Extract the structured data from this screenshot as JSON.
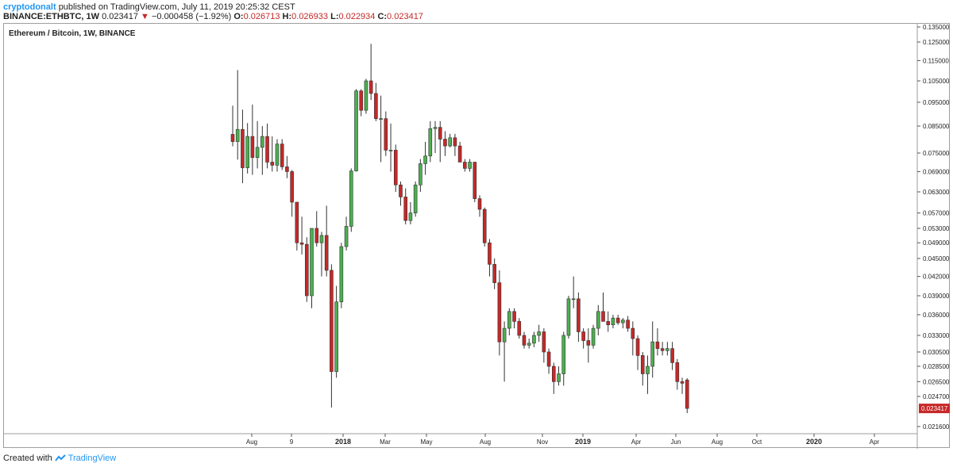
{
  "header": {
    "author": "cryptodonalt",
    "published": "published on TradingView.com, July 11, 2019 20:25:32 CEST",
    "symbol": "BINANCE:ETHBTC, 1W",
    "last": "0.023417",
    "change": "−0.000458 (−1.92%)",
    "o_label": "O:",
    "o_value": "0.026713",
    "h_label": "H:",
    "h_value": "0.026933",
    "l_label": "L:",
    "l_value": "0.022934",
    "c_label": "C:",
    "c_value": "0.023417"
  },
  "footer": {
    "created_with": "Created with",
    "brand": "TradingView"
  },
  "colors": {
    "up": "#4caf50",
    "down": "#c62828",
    "last_price_bg": "#c62828",
    "brand": "#2196f3"
  },
  "chart_data": {
    "type": "candlestick",
    "title": "Ethereum / Bitcoin, 1W, BINANCE",
    "y_ticks": [
      "0.135000",
      "0.125000",
      "0.115000",
      "0.105000",
      "0.095000",
      "0.085000",
      "0.075000",
      "0.069000",
      "0.063000",
      "0.057000",
      "0.053000",
      "0.049000",
      "0.045000",
      "0.042000",
      "0.039000",
      "0.036000",
      "0.033000",
      "0.030500",
      "0.028500",
      "0.026500",
      "0.024700",
      "0.021600"
    ],
    "x_ticks": [
      "Aug",
      "9",
      "2018",
      "Mar",
      "May",
      "Aug",
      "Nov",
      "2019",
      "Apr",
      "Jun",
      "Aug",
      "Oct",
      "2020",
      "Apr"
    ],
    "last_price_label": "0.023417",
    "candles": [
      {
        "o": 0.0818,
        "h": 0.0935,
        "l": 0.0774,
        "c": 0.0791
      },
      {
        "o": 0.0791,
        "h": 0.1102,
        "l": 0.0728,
        "c": 0.0837
      },
      {
        "o": 0.0837,
        "h": 0.0918,
        "l": 0.0655,
        "c": 0.0702
      },
      {
        "o": 0.0702,
        "h": 0.0862,
        "l": 0.0684,
        "c": 0.081
      },
      {
        "o": 0.081,
        "h": 0.094,
        "l": 0.068,
        "c": 0.0735
      },
      {
        "o": 0.0735,
        "h": 0.087,
        "l": 0.07,
        "c": 0.077
      },
      {
        "o": 0.077,
        "h": 0.085,
        "l": 0.068,
        "c": 0.081
      },
      {
        "o": 0.081,
        "h": 0.086,
        "l": 0.07,
        "c": 0.072
      },
      {
        "o": 0.072,
        "h": 0.081,
        "l": 0.069,
        "c": 0.071
      },
      {
        "o": 0.071,
        "h": 0.08,
        "l": 0.069,
        "c": 0.0782
      },
      {
        "o": 0.0782,
        "h": 0.08,
        "l": 0.0695,
        "c": 0.0705
      },
      {
        "o": 0.0705,
        "h": 0.074,
        "l": 0.067,
        "c": 0.069
      },
      {
        "o": 0.069,
        "h": 0.0695,
        "l": 0.056,
        "c": 0.06
      },
      {
        "o": 0.06,
        "h": 0.06,
        "l": 0.047,
        "c": 0.049
      },
      {
        "o": 0.049,
        "h": 0.056,
        "l": 0.046,
        "c": 0.0486
      },
      {
        "o": 0.0486,
        "h": 0.0505,
        "l": 0.038,
        "c": 0.039
      },
      {
        "o": 0.039,
        "h": 0.053,
        "l": 0.037,
        "c": 0.053
      },
      {
        "o": 0.053,
        "h": 0.0575,
        "l": 0.048,
        "c": 0.049
      },
      {
        "o": 0.049,
        "h": 0.052,
        "l": 0.042,
        "c": 0.051
      },
      {
        "o": 0.051,
        "h": 0.059,
        "l": 0.042,
        "c": 0.043
      },
      {
        "o": 0.043,
        "h": 0.044,
        "l": 0.0235,
        "c": 0.0278
      },
      {
        "o": 0.0278,
        "h": 0.0405,
        "l": 0.027,
        "c": 0.038
      },
      {
        "o": 0.038,
        "h": 0.049,
        "l": 0.037,
        "c": 0.048
      },
      {
        "o": 0.048,
        "h": 0.056,
        "l": 0.047,
        "c": 0.0535
      },
      {
        "o": 0.0535,
        "h": 0.07,
        "l": 0.052,
        "c": 0.0692
      },
      {
        "o": 0.0692,
        "h": 0.101,
        "l": 0.069,
        "c": 0.1002
      },
      {
        "o": 0.1002,
        "h": 0.101,
        "l": 0.089,
        "c": 0.0915
      },
      {
        "o": 0.0915,
        "h": 0.106,
        "l": 0.09,
        "c": 0.105
      },
      {
        "o": 0.105,
        "h": 0.124,
        "l": 0.096,
        "c": 0.099
      },
      {
        "o": 0.099,
        "h": 0.104,
        "l": 0.087,
        "c": 0.088
      },
      {
        "o": 0.088,
        "h": 0.098,
        "l": 0.072,
        "c": 0.088
      },
      {
        "o": 0.088,
        "h": 0.091,
        "l": 0.074,
        "c": 0.076
      },
      {
        "o": 0.076,
        "h": 0.086,
        "l": 0.069,
        "c": 0.076
      },
      {
        "o": 0.076,
        "h": 0.078,
        "l": 0.063,
        "c": 0.065
      },
      {
        "o": 0.065,
        "h": 0.066,
        "l": 0.059,
        "c": 0.0615
      },
      {
        "o": 0.0615,
        "h": 0.064,
        "l": 0.054,
        "c": 0.055
      },
      {
        "o": 0.055,
        "h": 0.06,
        "l": 0.054,
        "c": 0.057
      },
      {
        "o": 0.057,
        "h": 0.066,
        "l": 0.056,
        "c": 0.065
      },
      {
        "o": 0.065,
        "h": 0.073,
        "l": 0.063,
        "c": 0.0715
      },
      {
        "o": 0.0715,
        "h": 0.079,
        "l": 0.068,
        "c": 0.074
      },
      {
        "o": 0.074,
        "h": 0.087,
        "l": 0.072,
        "c": 0.084
      },
      {
        "o": 0.084,
        "h": 0.087,
        "l": 0.075,
        "c": 0.0845
      },
      {
        "o": 0.0845,
        "h": 0.087,
        "l": 0.072,
        "c": 0.08
      },
      {
        "o": 0.08,
        "h": 0.083,
        "l": 0.074,
        "c": 0.0775
      },
      {
        "o": 0.0775,
        "h": 0.082,
        "l": 0.077,
        "c": 0.0805
      },
      {
        "o": 0.0805,
        "h": 0.082,
        "l": 0.074,
        "c": 0.0775
      },
      {
        "o": 0.0775,
        "h": 0.079,
        "l": 0.072,
        "c": 0.072
      },
      {
        "o": 0.072,
        "h": 0.073,
        "l": 0.069,
        "c": 0.07
      },
      {
        "o": 0.07,
        "h": 0.073,
        "l": 0.069,
        "c": 0.072
      },
      {
        "o": 0.072,
        "h": 0.072,
        "l": 0.06,
        "c": 0.061
      },
      {
        "o": 0.061,
        "h": 0.062,
        "l": 0.056,
        "c": 0.058
      },
      {
        "o": 0.058,
        "h": 0.0585,
        "l": 0.048,
        "c": 0.049
      },
      {
        "o": 0.049,
        "h": 0.05,
        "l": 0.042,
        "c": 0.044
      },
      {
        "o": 0.044,
        "h": 0.045,
        "l": 0.04,
        "c": 0.041
      },
      {
        "o": 0.041,
        "h": 0.043,
        "l": 0.03,
        "c": 0.032
      },
      {
        "o": 0.032,
        "h": 0.035,
        "l": 0.0265,
        "c": 0.034
      },
      {
        "o": 0.034,
        "h": 0.037,
        "l": 0.033,
        "c": 0.0365
      },
      {
        "o": 0.0365,
        "h": 0.037,
        "l": 0.034,
        "c": 0.035
      },
      {
        "o": 0.035,
        "h": 0.0355,
        "l": 0.0325,
        "c": 0.033
      },
      {
        "o": 0.033,
        "h": 0.0335,
        "l": 0.031,
        "c": 0.0315
      },
      {
        "o": 0.0315,
        "h": 0.0325,
        "l": 0.031,
        "c": 0.0318
      },
      {
        "o": 0.0318,
        "h": 0.0335,
        "l": 0.0312,
        "c": 0.033
      },
      {
        "o": 0.033,
        "h": 0.0345,
        "l": 0.032,
        "c": 0.0335
      },
      {
        "o": 0.0335,
        "h": 0.034,
        "l": 0.029,
        "c": 0.0305
      },
      {
        "o": 0.0305,
        "h": 0.031,
        "l": 0.0275,
        "c": 0.0285
      },
      {
        "o": 0.0285,
        "h": 0.029,
        "l": 0.025,
        "c": 0.0265
      },
      {
        "o": 0.0265,
        "h": 0.0285,
        "l": 0.026,
        "c": 0.0275
      },
      {
        "o": 0.0275,
        "h": 0.0335,
        "l": 0.026,
        "c": 0.033
      },
      {
        "o": 0.033,
        "h": 0.039,
        "l": 0.0325,
        "c": 0.0385
      },
      {
        "o": 0.0385,
        "h": 0.042,
        "l": 0.037,
        "c": 0.0385
      },
      {
        "o": 0.0385,
        "h": 0.0395,
        "l": 0.032,
        "c": 0.0335
      },
      {
        "o": 0.0335,
        "h": 0.034,
        "l": 0.031,
        "c": 0.0322
      },
      {
        "o": 0.0322,
        "h": 0.034,
        "l": 0.029,
        "c": 0.0315
      },
      {
        "o": 0.0315,
        "h": 0.0345,
        "l": 0.031,
        "c": 0.034
      },
      {
        "o": 0.034,
        "h": 0.0375,
        "l": 0.033,
        "c": 0.0365
      },
      {
        "o": 0.0365,
        "h": 0.0395,
        "l": 0.035,
        "c": 0.035
      },
      {
        "o": 0.035,
        "h": 0.0365,
        "l": 0.0335,
        "c": 0.0345
      },
      {
        "o": 0.0345,
        "h": 0.036,
        "l": 0.034,
        "c": 0.0355
      },
      {
        "o": 0.0355,
        "h": 0.036,
        "l": 0.0345,
        "c": 0.0348
      },
      {
        "o": 0.0348,
        "h": 0.0355,
        "l": 0.034,
        "c": 0.0352
      },
      {
        "o": 0.0352,
        "h": 0.0358,
        "l": 0.0335,
        "c": 0.034
      },
      {
        "o": 0.034,
        "h": 0.035,
        "l": 0.03,
        "c": 0.0325
      },
      {
        "o": 0.0325,
        "h": 0.033,
        "l": 0.028,
        "c": 0.03
      },
      {
        "o": 0.03,
        "h": 0.0305,
        "l": 0.026,
        "c": 0.0275
      },
      {
        "o": 0.0275,
        "h": 0.03,
        "l": 0.025,
        "c": 0.0285
      },
      {
        "o": 0.0285,
        "h": 0.035,
        "l": 0.027,
        "c": 0.032
      },
      {
        "o": 0.032,
        "h": 0.034,
        "l": 0.03,
        "c": 0.031
      },
      {
        "o": 0.031,
        "h": 0.032,
        "l": 0.03,
        "c": 0.0307
      },
      {
        "o": 0.0307,
        "h": 0.032,
        "l": 0.03,
        "c": 0.031
      },
      {
        "o": 0.031,
        "h": 0.032,
        "l": 0.028,
        "c": 0.029
      },
      {
        "o": 0.029,
        "h": 0.0295,
        "l": 0.0255,
        "c": 0.0265
      },
      {
        "o": 0.0265,
        "h": 0.027,
        "l": 0.025,
        "c": 0.0263
      },
      {
        "o": 0.026713,
        "h": 0.026933,
        "l": 0.022934,
        "c": 0.023417
      }
    ]
  }
}
